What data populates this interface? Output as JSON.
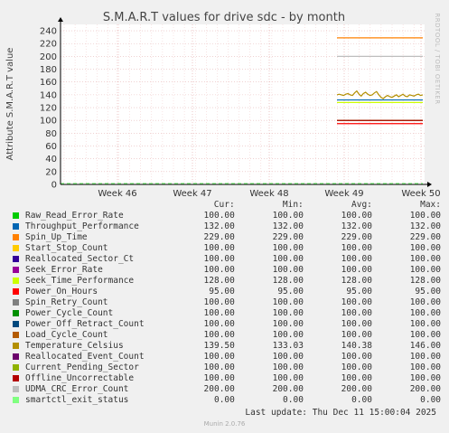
{
  "chart_data": {
    "type": "line",
    "title": "S.M.A.R.T values for drive sdc - by month",
    "ylabel": "Attribute S.M.A.R.T value",
    "side_label": "RRDTOOL / TOBI OETIKER",
    "ylim": [
      0,
      250
    ],
    "yticks": [
      0,
      20,
      40,
      60,
      80,
      100,
      120,
      140,
      160,
      180,
      200,
      220,
      240
    ],
    "xticks": [
      "Week 46",
      "Week 47",
      "Week 48",
      "Week 49",
      "Week 50"
    ],
    "data_start": "Week 49",
    "columns": [
      "Cur:",
      "Min:",
      "Avg:",
      "Max:"
    ],
    "series": [
      {
        "name": "Raw_Read_Error_Rate",
        "color": "#00cc00",
        "cur": "100.00",
        "min": "100.00",
        "avg": "100.00",
        "max": "100.00",
        "value": 100
      },
      {
        "name": "Throughput_Performance",
        "color": "#0066b3",
        "cur": "132.00",
        "min": "132.00",
        "avg": "132.00",
        "max": "132.00",
        "value": 132
      },
      {
        "name": "Spin_Up_Time",
        "color": "#ff8000",
        "cur": "229.00",
        "min": "229.00",
        "avg": "229.00",
        "max": "229.00",
        "value": 229
      },
      {
        "name": "Start_Stop_Count",
        "color": "#ffcc00",
        "cur": "100.00",
        "min": "100.00",
        "avg": "100.00",
        "max": "100.00",
        "value": 100
      },
      {
        "name": "Reallocated_Sector_Ct",
        "color": "#330099",
        "cur": "100.00",
        "min": "100.00",
        "avg": "100.00",
        "max": "100.00",
        "value": 100
      },
      {
        "name": "Seek_Error_Rate",
        "color": "#990099",
        "cur": "100.00",
        "min": "100.00",
        "avg": "100.00",
        "max": "100.00",
        "value": 100
      },
      {
        "name": "Seek_Time_Performance",
        "color": "#ccff00",
        "cur": "128.00",
        "min": "128.00",
        "avg": "128.00",
        "max": "128.00",
        "value": 128
      },
      {
        "name": "Power_On_Hours",
        "color": "#ff0000",
        "cur": "95.00",
        "min": "95.00",
        "avg": "95.00",
        "max": "95.00",
        "value": 95
      },
      {
        "name": "Spin_Retry_Count",
        "color": "#808080",
        "cur": "100.00",
        "min": "100.00",
        "avg": "100.00",
        "max": "100.00",
        "value": 100
      },
      {
        "name": "Power_Cycle_Count",
        "color": "#008f00",
        "cur": "100.00",
        "min": "100.00",
        "avg": "100.00",
        "max": "100.00",
        "value": 100
      },
      {
        "name": "Power_Off_Retract_Count",
        "color": "#00487d",
        "cur": "100.00",
        "min": "100.00",
        "avg": "100.00",
        "max": "100.00",
        "value": 100
      },
      {
        "name": "Load_Cycle_Count",
        "color": "#b35a00",
        "cur": "100.00",
        "min": "100.00",
        "avg": "100.00",
        "max": "100.00",
        "value": 100
      },
      {
        "name": "Temperature_Celsius",
        "color": "#b38f00",
        "cur": "139.50",
        "min": "133.03",
        "avg": "140.38",
        "max": "146.00",
        "value": 139.5,
        "trace": [
          140,
          141,
          140,
          139,
          141,
          142,
          140,
          139,
          143,
          146,
          141,
          138,
          142,
          144,
          141,
          139,
          140,
          143,
          145,
          140,
          136,
          134,
          137,
          139,
          137,
          136,
          138,
          140,
          137,
          139,
          141,
          138,
          137,
          140,
          139,
          138,
          140,
          141,
          139,
          140
        ]
      },
      {
        "name": "Reallocated_Event_Count",
        "color": "#6b006b",
        "cur": "100.00",
        "min": "100.00",
        "avg": "100.00",
        "max": "100.00",
        "value": 100
      },
      {
        "name": "Current_Pending_Sector",
        "color": "#8fb300",
        "cur": "100.00",
        "min": "100.00",
        "avg": "100.00",
        "max": "100.00",
        "value": 100
      },
      {
        "name": "Offline_Uncorrectable",
        "color": "#b30000",
        "cur": "100.00",
        "min": "100.00",
        "avg": "100.00",
        "max": "100.00",
        "value": 100
      },
      {
        "name": "UDMA_CRC_Error_Count",
        "color": "#bebebe",
        "cur": "200.00",
        "min": "200.00",
        "avg": "200.00",
        "max": "200.00",
        "value": 200
      },
      {
        "name": "smartctl_exit_status",
        "color": "#80ff80",
        "cur": "0.00",
        "min": "0.00",
        "avg": "0.00",
        "max": "0.00",
        "value": 0
      }
    ]
  },
  "footer": {
    "last_update": "Last update: Thu Dec 11 15:00:04 2025",
    "version": "Munin 2.0.76"
  }
}
